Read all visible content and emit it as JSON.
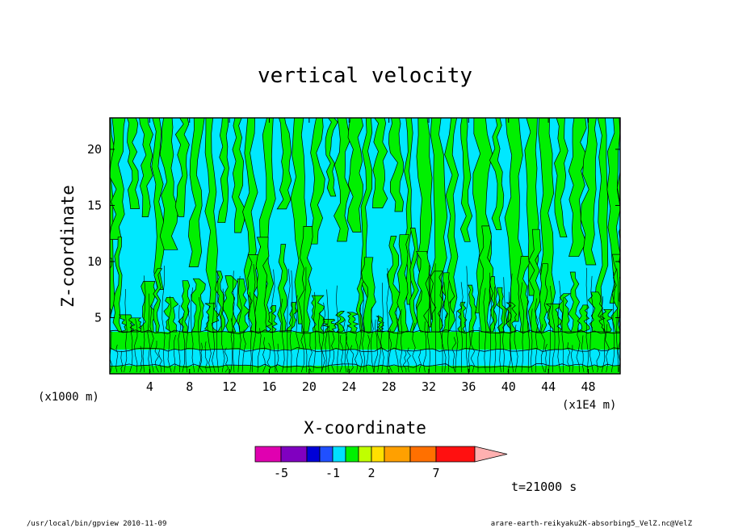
{
  "chart_data": {
    "type": "heatmap",
    "title": "vertical velocity",
    "xlabel": "X-coordinate",
    "ylabel": "Z-coordinate",
    "x_unit": "(x1000 m)",
    "x_unit_right": "(x1E4 m)",
    "x_ticks": [
      "4",
      "8",
      "12",
      "16",
      "20",
      "24",
      "28",
      "32",
      "36",
      "40",
      "44",
      "48"
    ],
    "y_ticks": [
      "5",
      "10",
      "15",
      "20"
    ],
    "x_tick_values": [
      4,
      8,
      12,
      16,
      20,
      24,
      28,
      32,
      36,
      40,
      44,
      48
    ],
    "y_tick_values": [
      5,
      10,
      15,
      20
    ],
    "xlim": [
      0,
      51.2
    ],
    "ylim": [
      0,
      22.8
    ],
    "colorbar": {
      "labels": [
        "-5",
        "-1",
        "2",
        "7"
      ],
      "label_values": [
        -5,
        -1,
        2,
        7
      ],
      "levels": [
        -7,
        -5,
        -3,
        -2,
        -1,
        0,
        1,
        2,
        3,
        5,
        7,
        10
      ],
      "colors": [
        "#e000b0",
        "#8000c0",
        "#0000d8",
        "#2050ff",
        "#00e0ff",
        "#00f000",
        "#c0ff00",
        "#ffe000",
        "#ffa000",
        "#ff7000",
        "#ff1010",
        "#ff8080",
        "#ffb0b0"
      ]
    },
    "field_colors": {
      "negative": "#00e8ff",
      "positive": "#00f000",
      "contour": "#000000"
    },
    "time_label": "t=21000 s"
  },
  "footer": {
    "left": "/usr/local/bin/gpview   2010-11-09",
    "right": "arare-earth-reikyaku2K-absorbing5_VelZ.nc@VelZ"
  }
}
